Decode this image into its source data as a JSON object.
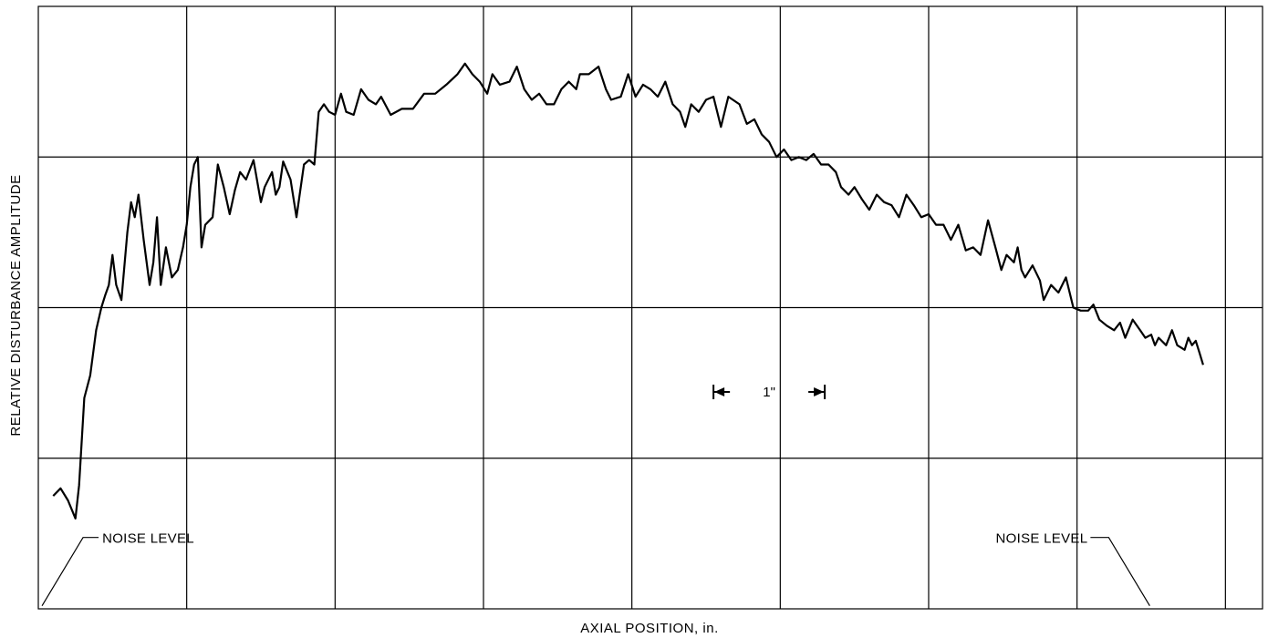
{
  "chart_data": {
    "type": "line",
    "title": "",
    "xlabel": "AXIAL POSITION, in.",
    "ylabel": "RELATIVE DISTURBANCE AMPLITUDE",
    "grid": true,
    "xlim": [
      0,
      16.5
    ],
    "ylim": [
      0,
      4
    ],
    "scale_marker": {
      "label": "1\"",
      "from": 9.1,
      "to": 10.6,
      "y": 1.44
    },
    "annotations": [
      {
        "id": "noise-left",
        "text": "NOISE LEVEL",
        "x": 0.05,
        "y": 0.02
      },
      {
        "id": "noise-right",
        "text": "NOISE LEVEL",
        "x": 14.98,
        "y": 0.02
      }
    ],
    "series": [
      {
        "points": [
          [
            0.2,
            0.75
          ],
          [
            0.3,
            0.8
          ],
          [
            0.4,
            0.72
          ],
          [
            0.45,
            0.66
          ],
          [
            0.5,
            0.6
          ],
          [
            0.55,
            0.82
          ],
          [
            0.62,
            1.4
          ],
          [
            0.7,
            1.55
          ],
          [
            0.78,
            1.85
          ],
          [
            0.85,
            2.0
          ],
          [
            0.9,
            2.08
          ],
          [
            0.95,
            2.15
          ],
          [
            1.0,
            2.35
          ],
          [
            1.05,
            2.15
          ],
          [
            1.12,
            2.05
          ],
          [
            1.2,
            2.5
          ],
          [
            1.25,
            2.7
          ],
          [
            1.3,
            2.6
          ],
          [
            1.35,
            2.75
          ],
          [
            1.42,
            2.45
          ],
          [
            1.5,
            2.15
          ],
          [
            1.55,
            2.3
          ],
          [
            1.6,
            2.6
          ],
          [
            1.65,
            2.15
          ],
          [
            1.72,
            2.4
          ],
          [
            1.8,
            2.2
          ],
          [
            1.88,
            2.25
          ],
          [
            1.95,
            2.4
          ],
          [
            2.0,
            2.55
          ],
          [
            2.05,
            2.8
          ],
          [
            2.1,
            2.95
          ],
          [
            2.15,
            3.0
          ],
          [
            2.2,
            2.4
          ],
          [
            2.25,
            2.55
          ],
          [
            2.35,
            2.6
          ],
          [
            2.42,
            2.95
          ],
          [
            2.5,
            2.8
          ],
          [
            2.58,
            2.62
          ],
          [
            2.65,
            2.78
          ],
          [
            2.72,
            2.9
          ],
          [
            2.8,
            2.85
          ],
          [
            2.9,
            2.98
          ],
          [
            3.0,
            2.7
          ],
          [
            3.05,
            2.8
          ],
          [
            3.15,
            2.9
          ],
          [
            3.2,
            2.75
          ],
          [
            3.25,
            2.8
          ],
          [
            3.3,
            2.97
          ],
          [
            3.4,
            2.85
          ],
          [
            3.48,
            2.6
          ],
          [
            3.58,
            2.95
          ],
          [
            3.65,
            2.98
          ],
          [
            3.72,
            2.95
          ],
          [
            3.78,
            3.3
          ],
          [
            3.85,
            3.35
          ],
          [
            3.92,
            3.3
          ],
          [
            4.0,
            3.28
          ],
          [
            4.08,
            3.42
          ],
          [
            4.15,
            3.3
          ],
          [
            4.25,
            3.28
          ],
          [
            4.35,
            3.45
          ],
          [
            4.45,
            3.38
          ],
          [
            4.55,
            3.35
          ],
          [
            4.62,
            3.4
          ],
          [
            4.75,
            3.28
          ],
          [
            4.9,
            3.32
          ],
          [
            5.05,
            3.32
          ],
          [
            5.2,
            3.42
          ],
          [
            5.35,
            3.42
          ],
          [
            5.5,
            3.48
          ],
          [
            5.65,
            3.55
          ],
          [
            5.75,
            3.62
          ],
          [
            5.85,
            3.55
          ],
          [
            5.95,
            3.5
          ],
          [
            6.05,
            3.42
          ],
          [
            6.12,
            3.55
          ],
          [
            6.22,
            3.48
          ],
          [
            6.35,
            3.5
          ],
          [
            6.45,
            3.6
          ],
          [
            6.55,
            3.45
          ],
          [
            6.65,
            3.38
          ],
          [
            6.75,
            3.42
          ],
          [
            6.85,
            3.35
          ],
          [
            6.95,
            3.35
          ],
          [
            7.05,
            3.45
          ],
          [
            7.15,
            3.5
          ],
          [
            7.25,
            3.45
          ],
          [
            7.3,
            3.55
          ],
          [
            7.42,
            3.55
          ],
          [
            7.55,
            3.6
          ],
          [
            7.65,
            3.45
          ],
          [
            7.72,
            3.38
          ],
          [
            7.85,
            3.4
          ],
          [
            7.95,
            3.55
          ],
          [
            8.05,
            3.4
          ],
          [
            8.15,
            3.48
          ],
          [
            8.25,
            3.45
          ],
          [
            8.35,
            3.4
          ],
          [
            8.45,
            3.5
          ],
          [
            8.55,
            3.35
          ],
          [
            8.65,
            3.3
          ],
          [
            8.72,
            3.2
          ],
          [
            8.8,
            3.35
          ],
          [
            8.9,
            3.3
          ],
          [
            9.0,
            3.38
          ],
          [
            9.1,
            3.4
          ],
          [
            9.2,
            3.2
          ],
          [
            9.3,
            3.4
          ],
          [
            9.45,
            3.35
          ],
          [
            9.55,
            3.22
          ],
          [
            9.65,
            3.25
          ],
          [
            9.75,
            3.15
          ],
          [
            9.85,
            3.1
          ],
          [
            9.95,
            3.0
          ],
          [
            10.05,
            3.05
          ],
          [
            10.15,
            2.98
          ],
          [
            10.25,
            3.0
          ],
          [
            10.35,
            2.98
          ],
          [
            10.45,
            3.02
          ],
          [
            10.55,
            2.95
          ],
          [
            10.65,
            2.95
          ],
          [
            10.75,
            2.9
          ],
          [
            10.82,
            2.8
          ],
          [
            10.92,
            2.75
          ],
          [
            11.0,
            2.8
          ],
          [
            11.1,
            2.72
          ],
          [
            11.2,
            2.65
          ],
          [
            11.3,
            2.75
          ],
          [
            11.4,
            2.7
          ],
          [
            11.5,
            2.68
          ],
          [
            11.6,
            2.6
          ],
          [
            11.7,
            2.75
          ],
          [
            11.8,
            2.68
          ],
          [
            11.9,
            2.6
          ],
          [
            12.0,
            2.62
          ],
          [
            12.1,
            2.55
          ],
          [
            12.2,
            2.55
          ],
          [
            12.3,
            2.45
          ],
          [
            12.4,
            2.55
          ],
          [
            12.5,
            2.38
          ],
          [
            12.6,
            2.4
          ],
          [
            12.7,
            2.35
          ],
          [
            12.8,
            2.58
          ],
          [
            12.9,
            2.4
          ],
          [
            12.98,
            2.25
          ],
          [
            13.05,
            2.35
          ],
          [
            13.15,
            2.3
          ],
          [
            13.2,
            2.4
          ],
          [
            13.25,
            2.25
          ],
          [
            13.3,
            2.2
          ],
          [
            13.4,
            2.28
          ],
          [
            13.5,
            2.18
          ],
          [
            13.55,
            2.05
          ],
          [
            13.65,
            2.15
          ],
          [
            13.75,
            2.1
          ],
          [
            13.85,
            2.2
          ],
          [
            13.95,
            2.0
          ],
          [
            14.05,
            1.98
          ],
          [
            14.15,
            1.98
          ],
          [
            14.22,
            2.02
          ],
          [
            14.3,
            1.92
          ],
          [
            14.4,
            1.88
          ],
          [
            14.5,
            1.85
          ],
          [
            14.58,
            1.9
          ],
          [
            14.65,
            1.8
          ],
          [
            14.75,
            1.92
          ],
          [
            14.85,
            1.85
          ],
          [
            14.92,
            1.8
          ],
          [
            15.0,
            1.82
          ],
          [
            15.05,
            1.75
          ],
          [
            15.1,
            1.8
          ],
          [
            15.2,
            1.75
          ],
          [
            15.28,
            1.85
          ],
          [
            15.35,
            1.75
          ],
          [
            15.45,
            1.72
          ],
          [
            15.5,
            1.8
          ],
          [
            15.55,
            1.75
          ],
          [
            15.6,
            1.78
          ],
          [
            15.65,
            1.7
          ],
          [
            15.7,
            1.62
          ]
        ]
      }
    ]
  }
}
